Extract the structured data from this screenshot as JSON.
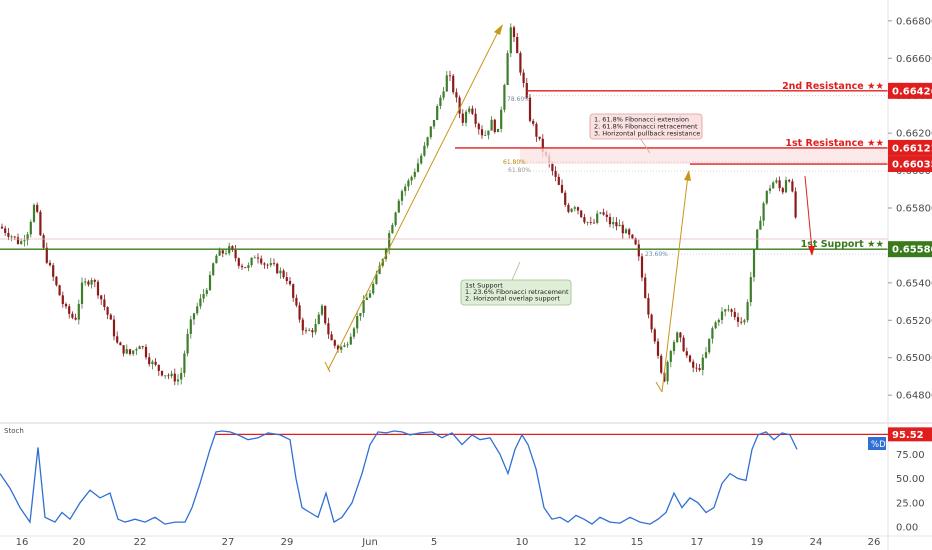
{
  "chart_data": {
    "type": "candlestick",
    "y_axis": {
      "ticks": [
        "0.66800",
        "0.66600",
        "0.66400",
        "0.66200",
        "0.66000",
        "0.65800",
        "0.65600",
        "0.65400",
        "0.65200",
        "0.65000",
        "0.64800"
      ],
      "ylim": [
        0.6471,
        0.6689
      ]
    },
    "x_axis": {
      "ticks": [
        "16",
        "20",
        "22",
        "27",
        "29",
        "Jun",
        "5",
        "10",
        "12",
        "15",
        "17",
        "19",
        "24",
        "26"
      ]
    },
    "price_path": [
      [
        0,
        0.657
      ],
      [
        12,
        0.6565
      ],
      [
        20,
        0.6561
      ],
      [
        28,
        0.6568
      ],
      [
        35,
        0.6583
      ],
      [
        42,
        0.656
      ],
      [
        55,
        0.654
      ],
      [
        65,
        0.6526
      ],
      [
        75,
        0.652
      ],
      [
        82,
        0.6538
      ],
      [
        92,
        0.6543
      ],
      [
        100,
        0.6533
      ],
      [
        110,
        0.652
      ],
      [
        118,
        0.6506
      ],
      [
        130,
        0.6502
      ],
      [
        140,
        0.6508
      ],
      [
        150,
        0.6498
      ],
      [
        160,
        0.6493
      ],
      [
        170,
        0.649
      ],
      [
        180,
        0.6488
      ],
      [
        186,
        0.6508
      ],
      [
        193,
        0.6523
      ],
      [
        200,
        0.653
      ],
      [
        210,
        0.6542
      ],
      [
        215,
        0.6554
      ],
      [
        222,
        0.6556
      ],
      [
        230,
        0.6558
      ],
      [
        240,
        0.655
      ],
      [
        248,
        0.6548
      ],
      [
        256,
        0.6556
      ],
      [
        265,
        0.655
      ],
      [
        275,
        0.6548
      ],
      [
        288,
        0.6542
      ],
      [
        295,
        0.6528
      ],
      [
        305,
        0.6513
      ],
      [
        315,
        0.6516
      ],
      [
        322,
        0.6526
      ],
      [
        330,
        0.651
      ],
      [
        337,
        0.6505
      ],
      [
        345,
        0.6506
      ],
      [
        352,
        0.6515
      ],
      [
        360,
        0.6525
      ],
      [
        368,
        0.6533
      ],
      [
        376,
        0.6542
      ],
      [
        384,
        0.6556
      ],
      [
        392,
        0.6572
      ],
      [
        400,
        0.6588
      ],
      [
        410,
        0.6595
      ],
      [
        418,
        0.6604
      ],
      [
        426,
        0.6614
      ],
      [
        434,
        0.6628
      ],
      [
        441,
        0.664
      ],
      [
        448,
        0.6652
      ],
      [
        455,
        0.664
      ],
      [
        462,
        0.6626
      ],
      [
        470,
        0.6636
      ],
      [
        477,
        0.6625
      ],
      [
        484,
        0.6618
      ],
      [
        491,
        0.6626
      ],
      [
        498,
        0.662
      ],
      [
        505,
        0.665
      ],
      [
        510,
        0.6678
      ],
      [
        516,
        0.6665
      ],
      [
        522,
        0.665
      ],
      [
        530,
        0.6628
      ],
      [
        538,
        0.6617
      ],
      [
        545,
        0.6608
      ],
      [
        552,
        0.66
      ],
      [
        560,
        0.659
      ],
      [
        567,
        0.6579
      ],
      [
        575,
        0.6582
      ],
      [
        583,
        0.6575
      ],
      [
        592,
        0.657
      ],
      [
        600,
        0.6578
      ],
      [
        610,
        0.6572
      ],
      [
        620,
        0.657
      ],
      [
        630,
        0.6564
      ],
      [
        637,
        0.6558
      ],
      [
        643,
        0.654
      ],
      [
        649,
        0.6523
      ],
      [
        655,
        0.651
      ],
      [
        660,
        0.6492
      ],
      [
        664,
        0.6488
      ],
      [
        670,
        0.6505
      ],
      [
        677,
        0.6512
      ],
      [
        684,
        0.6505
      ],
      [
        690,
        0.6496
      ],
      [
        697,
        0.6493
      ],
      [
        705,
        0.65
      ],
      [
        712,
        0.6515
      ],
      [
        720,
        0.6523
      ],
      [
        728,
        0.6526
      ],
      [
        736,
        0.6522
      ],
      [
        744,
        0.6518
      ],
      [
        750,
        0.654
      ],
      [
        755,
        0.656
      ],
      [
        762,
        0.658
      ],
      [
        768,
        0.659
      ],
      [
        775,
        0.6595
      ],
      [
        782,
        0.6588
      ],
      [
        788,
        0.66
      ],
      [
        793,
        0.6585
      ],
      [
        798,
        0.6566
      ]
    ],
    "levels": [
      {
        "name": "2nd Resistance ★★",
        "value": "0.66426",
        "color": "#e01e1e"
      },
      {
        "name": "1st Resistance ★★",
        "value": "0.66121",
        "color": "#e01e1e"
      },
      {
        "name": "",
        "value": "0.66035",
        "color": "#e01e1e"
      },
      {
        "name": "1st Support ★★",
        "value": "0.65580",
        "color": "#3a7a1c"
      }
    ],
    "fib_labels": [
      "78.60%",
      "61.80%",
      "61.80%",
      "23.60%"
    ],
    "annotations": {
      "resistance_note": [
        "1. 61.8% Fibonacci extension",
        "2. 61.8% Fibonacci retracement",
        "3. Horizontal pullback resistance"
      ],
      "support_note": [
        "1st Support",
        "1. 23.6% Fibonacci retracement",
        "2. Horizontal overlap support"
      ]
    }
  },
  "stoch": {
    "label": "Stoch",
    "ticks": [
      "75.00",
      "50.00",
      "25.00",
      "0.00"
    ],
    "value_tag": "95.52",
    "series_tag": "%D",
    "ylim": [
      0,
      100
    ],
    "values": [
      [
        0,
        55
      ],
      [
        10,
        40
      ],
      [
        20,
        20
      ],
      [
        30,
        5
      ],
      [
        38,
        82
      ],
      [
        45,
        10
      ],
      [
        55,
        5
      ],
      [
        62,
        15
      ],
      [
        70,
        8
      ],
      [
        80,
        25
      ],
      [
        90,
        38
      ],
      [
        100,
        30
      ],
      [
        110,
        35
      ],
      [
        118,
        8
      ],
      [
        125,
        5
      ],
      [
        135,
        8
      ],
      [
        145,
        5
      ],
      [
        155,
        10
      ],
      [
        165,
        3
      ],
      [
        175,
        5
      ],
      [
        185,
        5
      ],
      [
        192,
        20
      ],
      [
        200,
        45
      ],
      [
        210,
        80
      ],
      [
        216,
        98
      ],
      [
        222,
        99
      ],
      [
        230,
        98
      ],
      [
        238,
        95
      ],
      [
        248,
        90
      ],
      [
        258,
        92
      ],
      [
        268,
        97
      ],
      [
        280,
        95
      ],
      [
        290,
        90
      ],
      [
        296,
        50
      ],
      [
        302,
        20
      ],
      [
        310,
        15
      ],
      [
        318,
        10
      ],
      [
        326,
        35
      ],
      [
        334,
        5
      ],
      [
        342,
        10
      ],
      [
        352,
        25
      ],
      [
        362,
        55
      ],
      [
        370,
        85
      ],
      [
        378,
        98
      ],
      [
        386,
        97
      ],
      [
        394,
        99
      ],
      [
        402,
        98
      ],
      [
        410,
        95
      ],
      [
        420,
        97
      ],
      [
        432,
        98
      ],
      [
        442,
        92
      ],
      [
        452,
        97
      ],
      [
        462,
        85
      ],
      [
        472,
        95
      ],
      [
        480,
        90
      ],
      [
        490,
        92
      ],
      [
        500,
        75
      ],
      [
        508,
        55
      ],
      [
        515,
        80
      ],
      [
        522,
        95
      ],
      [
        528,
        85
      ],
      [
        536,
        60
      ],
      [
        544,
        20
      ],
      [
        552,
        8
      ],
      [
        560,
        10
      ],
      [
        568,
        5
      ],
      [
        576,
        12
      ],
      [
        584,
        8
      ],
      [
        592,
        3
      ],
      [
        600,
        10
      ],
      [
        610,
        5
      ],
      [
        620,
        4
      ],
      [
        630,
        10
      ],
      [
        640,
        5
      ],
      [
        650,
        3
      ],
      [
        658,
        8
      ],
      [
        666,
        15
      ],
      [
        674,
        35
      ],
      [
        682,
        20
      ],
      [
        690,
        30
      ],
      [
        698,
        25
      ],
      [
        706,
        15
      ],
      [
        714,
        20
      ],
      [
        722,
        45
      ],
      [
        730,
        55
      ],
      [
        738,
        50
      ],
      [
        746,
        48
      ],
      [
        752,
        80
      ],
      [
        758,
        95
      ],
      [
        766,
        98
      ],
      [
        774,
        90
      ],
      [
        782,
        97
      ],
      [
        790,
        95
      ],
      [
        797,
        80
      ]
    ]
  }
}
